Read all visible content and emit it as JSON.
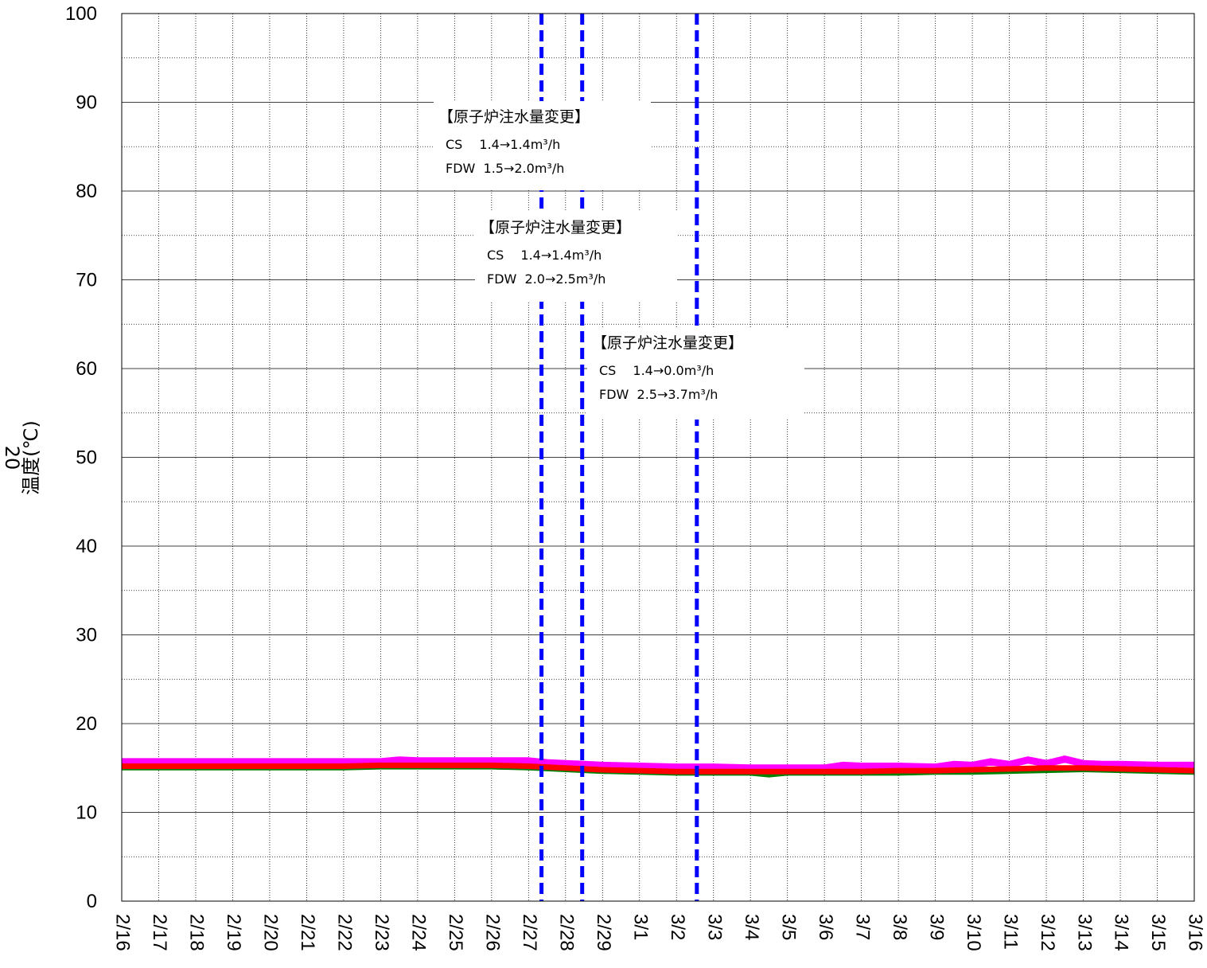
{
  "chart_data": {
    "type": "line",
    "ylabel": "温度(℃)",
    "ylabel_secondary": "20",
    "ylim": [
      0,
      100
    ],
    "yticks": [
      "0",
      "10",
      "20",
      "30",
      "40",
      "50",
      "60",
      "70",
      "80",
      "90",
      "100"
    ],
    "x_tick_labels": [
      "2/16",
      "2/17",
      "2/18",
      "2/19",
      "2/20",
      "2/21",
      "2/22",
      "2/23",
      "2/24",
      "2/25",
      "2/26",
      "2/27",
      "2/28",
      "2/29",
      "3/1",
      "3/2",
      "3/3",
      "3/4",
      "3/5",
      "3/6",
      "3/7",
      "3/8",
      "3/9",
      "3/10",
      "3/11",
      "3/12",
      "3/13",
      "3/14",
      "3/15",
      "3/16"
    ],
    "grid": true,
    "colors": {
      "grid": "#000000",
      "event_line": "#0000ff",
      "series_magenta": "#ff00ff",
      "series_red": "#ff0000",
      "series_green": "#008000"
    },
    "series": [
      {
        "color": "#ff00ff",
        "x": [
          0,
          1,
          2,
          3,
          4,
          5,
          6,
          7,
          7.5,
          8,
          9,
          10,
          11,
          11.5,
          12,
          12.5,
          13,
          14,
          15,
          16,
          17,
          18,
          19,
          19.5,
          20,
          21,
          22,
          22.5,
          23,
          23.5,
          24,
          24.5,
          25,
          25.5,
          26,
          26.5,
          27,
          28,
          29
        ],
        "values": [
          15.7,
          15.7,
          15.7,
          15.7,
          15.7,
          15.7,
          15.7,
          15.7,
          15.9,
          15.8,
          15.8,
          15.8,
          15.8,
          15.6,
          15.5,
          15.4,
          15.3,
          15.2,
          15.1,
          15.1,
          15.0,
          15.0,
          15.0,
          15.3,
          15.2,
          15.2,
          15.1,
          15.4,
          15.3,
          15.7,
          15.4,
          15.9,
          15.5,
          16.0,
          15.5,
          15.4,
          15.4,
          15.3,
          15.3
        ]
      },
      {
        "color": "#ff0000",
        "x": [
          0,
          1,
          2,
          3,
          4,
          5,
          6,
          7,
          8,
          9,
          10,
          11,
          11.5,
          12,
          12.5,
          13,
          14,
          15,
          16,
          17,
          18,
          19,
          20,
          21,
          22,
          23,
          24,
          25,
          26,
          27,
          28,
          29
        ],
        "values": [
          15.2,
          15.2,
          15.2,
          15.2,
          15.2,
          15.2,
          15.2,
          15.3,
          15.3,
          15.3,
          15.3,
          15.2,
          15.1,
          15.0,
          14.9,
          14.8,
          14.7,
          14.6,
          14.6,
          14.6,
          14.6,
          14.6,
          14.6,
          14.7,
          14.7,
          14.8,
          14.9,
          15.0,
          15.0,
          14.9,
          14.8,
          14.7
        ]
      },
      {
        "color": "#008000",
        "x": [
          0,
          1,
          2,
          3,
          4,
          5,
          6,
          7,
          8,
          9,
          10,
          11,
          12,
          13,
          14,
          15,
          16,
          17,
          17.5,
          18,
          19,
          20,
          21,
          22,
          23,
          24,
          25,
          26,
          27,
          28,
          29
        ],
        "values": [
          15.0,
          15.0,
          15.0,
          15.0,
          15.0,
          15.0,
          15.0,
          15.1,
          15.1,
          15.1,
          15.1,
          15.0,
          14.8,
          14.6,
          14.5,
          14.4,
          14.4,
          14.4,
          14.2,
          14.4,
          14.4,
          14.4,
          14.4,
          14.5,
          14.5,
          14.6,
          14.7,
          14.8,
          14.7,
          14.6,
          14.5
        ]
      }
    ],
    "event_lines": [
      11.35,
      12.45,
      15.55
    ],
    "annotations": [
      {
        "title": "【原子炉注水量変更】",
        "lines": [
          "CS　 1.4→1.4m³/h",
          "FDW  1.5→2.0m³/h"
        ]
      },
      {
        "title": "【原子炉注水量変更】",
        "lines": [
          "CS　 1.4→1.4m³/h",
          "FDW  2.0→2.5m³/h"
        ]
      },
      {
        "title": "【原子炉注水量変更】",
        "lines": [
          "CS　 1.4→0.0m³/h",
          "FDW  2.5→3.7m³/h"
        ]
      }
    ]
  }
}
